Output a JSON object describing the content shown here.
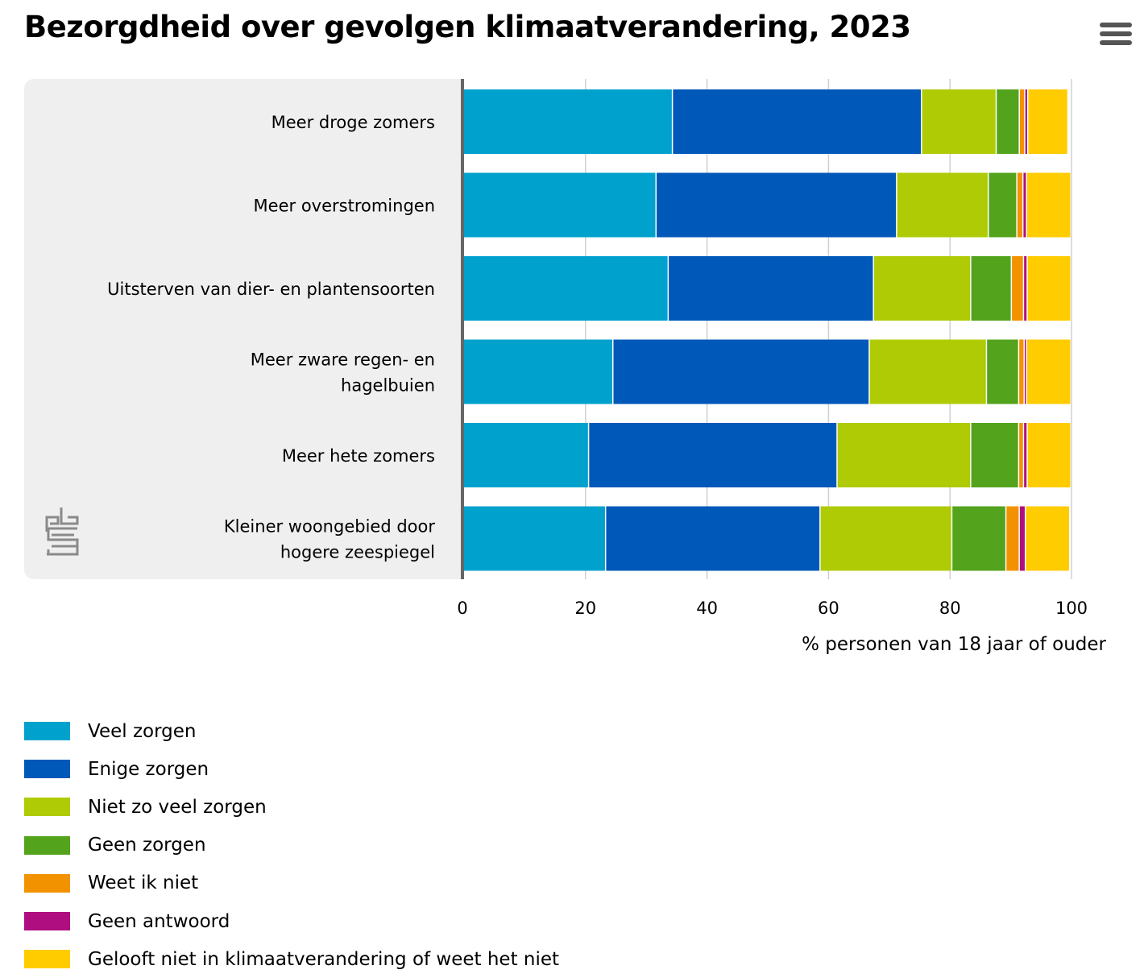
{
  "chart_data": {
    "type": "bar",
    "orientation": "horizontal",
    "stacked": true,
    "title": "Bezorgdheid over gevolgen klimaatverandering, 2023",
    "xlabel": "% personen van 18 jaar of ouder",
    "ylabel": "",
    "xlim": [
      0,
      100
    ],
    "xticks": [
      "0",
      "20",
      "40",
      "60",
      "80",
      "100"
    ],
    "grid": true,
    "legend_position": "bottom-left",
    "categories": [
      [
        "Meer droge zomers"
      ],
      [
        "Meer overstromingen"
      ],
      [
        "Uitsterven van dier- en plantensoorten"
      ],
      [
        "Meer zware regen- en",
        "hagelbuien"
      ],
      [
        "Meer hete zomers"
      ],
      [
        "Kleiner woongebied door",
        "hogere zeespiegel"
      ]
    ],
    "series": [
      {
        "name": "Veel zorgen",
        "color": "#00a1cd",
        "values": [
          34.4,
          31.7,
          33.7,
          24.6,
          20.6,
          23.4
        ]
      },
      {
        "name": "Enige zorgen",
        "color": "#0058b8",
        "values": [
          41.0,
          39.6,
          33.8,
          42.2,
          40.9,
          35.3
        ]
      },
      {
        "name": "Niet zo veel zorgen",
        "color": "#afcb05",
        "values": [
          12.3,
          15.1,
          16.0,
          19.3,
          22.0,
          21.7
        ]
      },
      {
        "name": "Geen zorgen",
        "color": "#53a31d",
        "values": [
          3.8,
          4.7,
          6.7,
          5.3,
          7.9,
          8.9
        ]
      },
      {
        "name": "Weet ik niet",
        "color": "#f39200",
        "values": [
          0.9,
          1.0,
          2.0,
          0.9,
          0.8,
          2.2
        ]
      },
      {
        "name": "Geen antwoord",
        "color": "#af0e80",
        "values": [
          0.5,
          0.6,
          0.6,
          0.4,
          0.6,
          1.0
        ]
      },
      {
        "name": "Gelooft niet in klimaatverandering of weet het niet",
        "color": "#ffcc00",
        "values": [
          6.6,
          7.3,
          7.2,
          7.3,
          7.2,
          7.3
        ]
      }
    ]
  },
  "menu_icon": "hamburger-menu-icon",
  "logo_icon": "cbs-logo-icon"
}
